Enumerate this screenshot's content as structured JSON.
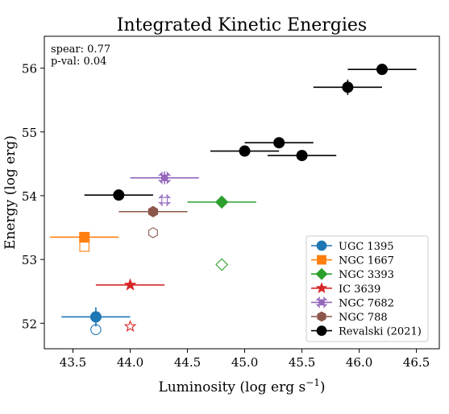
{
  "chart_data": {
    "type": "scatter",
    "title": "Integrated Kinetic Energies",
    "xlabel": "Luminosity (log erg s",
    "xlabel_sup": "−1",
    "xlabel_close": ")",
    "ylabel": "Energy (log erg)",
    "xlim": [
      43.25,
      46.7
    ],
    "ylim": [
      51.6,
      56.5
    ],
    "x_ticks": [
      43.5,
      44.0,
      44.5,
      45.0,
      45.5,
      46.0,
      46.5
    ],
    "x_tick_labels": [
      "43.5",
      "44.0",
      "44.5",
      "45.0",
      "45.5",
      "46.0",
      "46.5"
    ],
    "y_ticks": [
      52,
      53,
      54,
      55,
      56
    ],
    "y_tick_labels": [
      "52",
      "53",
      "54",
      "55",
      "56"
    ],
    "grid": false,
    "legend_position": "lower-right",
    "annotations": [
      "spear: 0.77",
      "p-val: 0.04"
    ],
    "series": [
      {
        "name": "UGC 1395",
        "color": "#1f77b4",
        "marker": "circle",
        "points": [
          {
            "x": 43.7,
            "y": 52.1,
            "xerr": 0.3,
            "yerr": 0.15
          }
        ],
        "open_points": [
          {
            "x": 43.7,
            "y": 51.9
          }
        ]
      },
      {
        "name": "NGC 1667",
        "color": "#ff7f0e",
        "marker": "square",
        "points": [
          {
            "x": 43.6,
            "y": 53.35,
            "xerr": 0.3,
            "yerr": 0.05
          }
        ],
        "open_points": [
          {
            "x": 43.6,
            "y": 53.2
          }
        ]
      },
      {
        "name": "NGC 3393",
        "color": "#2ca02c",
        "marker": "diamond",
        "points": [
          {
            "x": 44.8,
            "y": 53.9,
            "xerr": 0.3,
            "yerr": 0.05
          }
        ],
        "open_points": [
          {
            "x": 44.8,
            "y": 52.92
          }
        ]
      },
      {
        "name": "IC  3639",
        "color": "#d62728",
        "marker": "star",
        "points": [
          {
            "x": 44.0,
            "y": 52.6,
            "xerr": 0.3,
            "yerr": 0.03
          }
        ],
        "open_points": [
          {
            "x": 44.0,
            "y": 51.95
          }
        ]
      },
      {
        "name": "NGC 7682",
        "color": "#9467bd",
        "marker": "x",
        "points": [
          {
            "x": 44.3,
            "y": 54.28,
            "xerr": 0.3,
            "yerr": 0.1
          }
        ],
        "open_points": [
          {
            "x": 44.3,
            "y": 53.93
          }
        ]
      },
      {
        "name": "NGC  788",
        "color": "#8c564b",
        "marker": "hexagon",
        "points": [
          {
            "x": 44.2,
            "y": 53.75,
            "xerr": 0.3,
            "yerr": 0.08
          }
        ],
        "open_points": [
          {
            "x": 44.2,
            "y": 53.42
          }
        ]
      },
      {
        "name": "Revalski (2021)",
        "color": "#000000",
        "marker": "circle",
        "points": [
          {
            "x": 43.9,
            "y": 54.01,
            "xerr": 0.3,
            "yerr": 0.0
          },
          {
            "x": 45.0,
            "y": 54.7,
            "xerr": 0.3,
            "yerr": 0.0
          },
          {
            "x": 45.3,
            "y": 54.83,
            "xerr": 0.3,
            "yerr": 0.0
          },
          {
            "x": 45.5,
            "y": 54.63,
            "xerr": 0.3,
            "yerr": 0.0
          },
          {
            "x": 45.9,
            "y": 55.7,
            "xerr": 0.3,
            "yerr": 0.12
          },
          {
            "x": 46.2,
            "y": 55.98,
            "xerr": 0.3,
            "yerr": 0.0
          }
        ],
        "open_points": []
      }
    ]
  }
}
